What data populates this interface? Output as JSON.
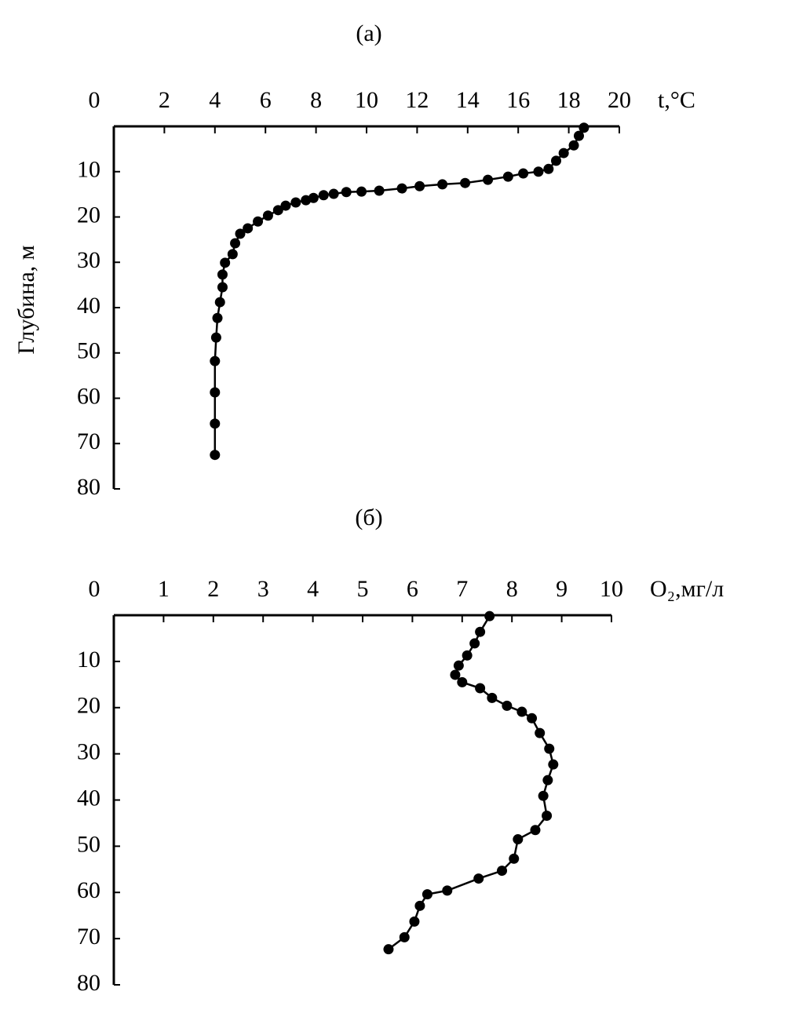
{
  "chart_data": [
    {
      "type": "line",
      "title": "(а)",
      "xlabel": "t,°C",
      "ylabel": "Глубина, м",
      "color": "#000000",
      "x": [
        18.6,
        18.4,
        18.2,
        17.8,
        17.5,
        17.2,
        16.8,
        16.2,
        15.6,
        14.8,
        13.9,
        13.0,
        12.1,
        11.4,
        10.5,
        9.8,
        9.2,
        8.7,
        8.3,
        7.9,
        7.6,
        7.2,
        6.8,
        6.5,
        6.1,
        5.7,
        5.3,
        5.0,
        4.8,
        4.7,
        4.4,
        4.3,
        4.3,
        4.2,
        4.1,
        4.05,
        4.0,
        4.0,
        4.0,
        4.0
      ],
      "y": [
        0.3,
        2.1,
        4.2,
        5.9,
        7.6,
        9.4,
        10.0,
        10.4,
        11.1,
        11.8,
        12.5,
        12.8,
        13.2,
        13.7,
        14.2,
        14.4,
        14.5,
        14.9,
        15.2,
        15.8,
        16.3,
        16.8,
        17.5,
        18.5,
        19.7,
        21.0,
        22.5,
        23.7,
        25.8,
        28.2,
        30.1,
        32.7,
        35.5,
        38.8,
        42.3,
        46.6,
        51.8,
        58.7,
        65.6,
        72.5
      ],
      "xlim": [
        0,
        20
      ],
      "xticks": [
        0,
        2,
        4,
        6,
        8,
        10,
        12,
        14,
        16,
        18,
        20
      ],
      "ylim": [
        0,
        80
      ],
      "yticks": [
        10,
        20,
        30,
        40,
        50,
        60,
        70,
        80
      ]
    },
    {
      "type": "line",
      "title": "(б)",
      "xlabel": "O₂,мг/л",
      "color": "#000000",
      "x": [
        7.55,
        7.36,
        7.25,
        7.1,
        6.93,
        6.86,
        7.0,
        7.36,
        7.6,
        7.9,
        8.2,
        8.4,
        8.56,
        8.75,
        8.83,
        8.72,
        8.63,
        8.7,
        8.47,
        8.12,
        8.04,
        7.8,
        7.33,
        6.7,
        6.3,
        6.15,
        6.04,
        5.84,
        5.52
      ],
      "y": [
        0.2,
        3.6,
        6.1,
        8.7,
        10.9,
        12.9,
        14.5,
        15.8,
        17.9,
        19.6,
        20.9,
        22.3,
        25.5,
        28.9,
        32.3,
        35.7,
        39.1,
        43.4,
        46.5,
        48.5,
        52.7,
        55.3,
        57.0,
        59.6,
        60.4,
        62.9,
        66.3,
        69.7,
        72.3
      ],
      "xlim": [
        0,
        10
      ],
      "xticks": [
        0,
        1,
        2,
        3,
        4,
        5,
        6,
        7,
        8,
        9,
        10
      ],
      "ylim": [
        0,
        80
      ],
      "yticks": [
        10,
        20,
        30,
        40,
        50,
        60,
        70,
        80
      ]
    }
  ]
}
